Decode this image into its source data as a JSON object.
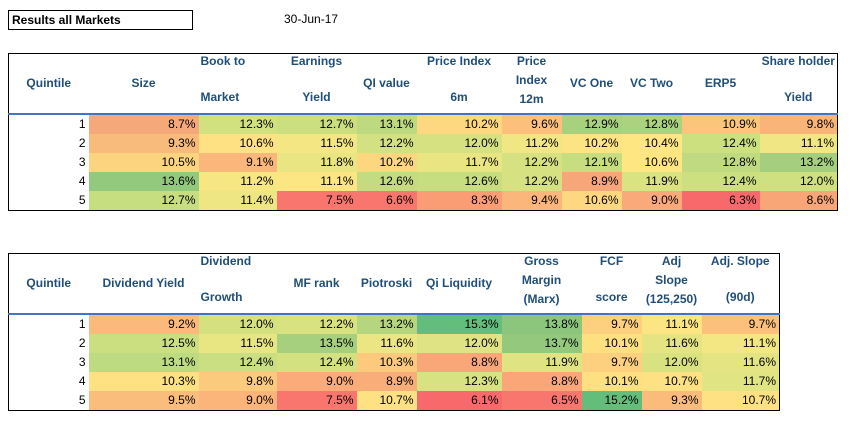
{
  "title": "Results all Markets",
  "date": "30-Jun-17",
  "table1": {
    "rows": [
      {
        "q": "1",
        "cells": [
          {
            "v": "8.7%",
            "c": "#f5a97a"
          },
          {
            "v": "12.3%",
            "c": "#d2e17f"
          },
          {
            "v": "12.7%",
            "c": "#cbdf81"
          },
          {
            "v": "13.1%",
            "c": "#bdda80"
          },
          {
            "v": "10.2%",
            "c": "#fed880"
          },
          {
            "v": "9.6%",
            "c": "#fcc07c"
          },
          {
            "v": "12.9%",
            "c": "#a8d17e"
          },
          {
            "v": "12.8%",
            "c": "#abd27e"
          },
          {
            "v": "10.9%",
            "c": "#fbc67c"
          },
          {
            "v": "9.8%",
            "c": "#f9b47a"
          }
        ]
      },
      {
        "q": "2",
        "cells": [
          {
            "v": "9.3%",
            "c": "#f8bb7b"
          },
          {
            "v": "10.6%",
            "c": "#fde182"
          },
          {
            "v": "11.5%",
            "c": "#f4e783"
          },
          {
            "v": "12.2%",
            "c": "#d3e182"
          },
          {
            "v": "12.0%",
            "c": "#d6e281"
          },
          {
            "v": "11.2%",
            "c": "#f1e684"
          },
          {
            "v": "10.2%",
            "c": "#fde483"
          },
          {
            "v": "10.4%",
            "c": "#fee683"
          },
          {
            "v": "12.4%",
            "c": "#cce080"
          },
          {
            "v": "11.1%",
            "c": "#f0e683"
          }
        ]
      },
      {
        "q": "3",
        "cells": [
          {
            "v": "10.5%",
            "c": "#fcd47f"
          },
          {
            "v": "9.1%",
            "c": "#fbb77b"
          },
          {
            "v": "11.8%",
            "c": "#e9e582"
          },
          {
            "v": "10.2%",
            "c": "#fdd680"
          },
          {
            "v": "11.7%",
            "c": "#eae583"
          },
          {
            "v": "12.2%",
            "c": "#d6e281"
          },
          {
            "v": "12.1%",
            "c": "#c8dd80"
          },
          {
            "v": "10.6%",
            "c": "#fee683"
          },
          {
            "v": "12.8%",
            "c": "#bfda80"
          },
          {
            "v": "13.2%",
            "c": "#a5cf7e"
          }
        ]
      },
      {
        "q": "4",
        "cells": [
          {
            "v": "13.6%",
            "c": "#93c97d"
          },
          {
            "v": "11.2%",
            "c": "#f7e783"
          },
          {
            "v": "11.1%",
            "c": "#fbe683"
          },
          {
            "v": "12.6%",
            "c": "#c3dc80"
          },
          {
            "v": "12.6%",
            "c": "#c6dd80"
          },
          {
            "v": "12.2%",
            "c": "#d6e281"
          },
          {
            "v": "8.9%",
            "c": "#f7a679"
          },
          {
            "v": "11.9%",
            "c": "#d9e381"
          },
          {
            "v": "12.4%",
            "c": "#cce080"
          },
          {
            "v": "12.0%",
            "c": "#cfe081"
          }
        ]
      },
      {
        "q": "5",
        "cells": [
          {
            "v": "12.7%",
            "c": "#c6dd80"
          },
          {
            "v": "11.4%",
            "c": "#eee683"
          },
          {
            "v": "7.5%",
            "c": "#f8766d"
          },
          {
            "v": "6.6%",
            "c": "#f8766d"
          },
          {
            "v": "8.3%",
            "c": "#fa9d75"
          },
          {
            "v": "9.4%",
            "c": "#fbb67b"
          },
          {
            "v": "10.6%",
            "c": "#fed880"
          },
          {
            "v": "9.0%",
            "c": "#f9a97a"
          },
          {
            "v": "6.3%",
            "c": "#f8696b"
          },
          {
            "v": "8.6%",
            "c": "#f8a678"
          }
        ]
      }
    ]
  },
  "table2": {
    "rows": [
      {
        "q": "1",
        "cells": [
          {
            "v": "9.2%",
            "c": "#fbba7b"
          },
          {
            "v": "12.0%",
            "c": "#d5e181"
          },
          {
            "v": "12.2%",
            "c": "#d9e281"
          },
          {
            "v": "13.2%",
            "c": "#b5d67f"
          },
          {
            "v": "15.3%",
            "c": "#63be7b"
          },
          {
            "v": "13.8%",
            "c": "#8cc67d"
          },
          {
            "v": "9.7%",
            "c": "#fdd07f"
          },
          {
            "v": "11.1%",
            "c": "#fee583"
          },
          {
            "v": "9.7%",
            "c": "#fbc17c"
          }
        ]
      },
      {
        "q": "2",
        "cells": [
          {
            "v": "12.5%",
            "c": "#cbdf81"
          },
          {
            "v": "11.5%",
            "c": "#e8e583"
          },
          {
            "v": "13.5%",
            "c": "#a7d07e"
          },
          {
            "v": "11.6%",
            "c": "#ebe583"
          },
          {
            "v": "12.0%",
            "c": "#e0e383"
          },
          {
            "v": "13.7%",
            "c": "#93c87d"
          },
          {
            "v": "10.1%",
            "c": "#fee081"
          },
          {
            "v": "11.6%",
            "c": "#e4e483"
          },
          {
            "v": "11.1%",
            "c": "#f2e783"
          }
        ]
      },
      {
        "q": "3",
        "cells": [
          {
            "v": "13.1%",
            "c": "#bddb80"
          },
          {
            "v": "12.4%",
            "c": "#cadf81"
          },
          {
            "v": "12.4%",
            "c": "#d4e181"
          },
          {
            "v": "10.3%",
            "c": "#fcc97d"
          },
          {
            "v": "8.8%",
            "c": "#f9a679"
          },
          {
            "v": "11.9%",
            "c": "#dfe382"
          },
          {
            "v": "9.7%",
            "c": "#fdd07f"
          },
          {
            "v": "12.0%",
            "c": "#d9e281"
          },
          {
            "v": "11.6%",
            "c": "#e4e483"
          }
        ]
      },
      {
        "q": "4",
        "cells": [
          {
            "v": "10.3%",
            "c": "#fde182"
          },
          {
            "v": "9.8%",
            "c": "#fcca7d"
          },
          {
            "v": "9.0%",
            "c": "#fbab7a"
          },
          {
            "v": "8.9%",
            "c": "#f9ad79"
          },
          {
            "v": "12.3%",
            "c": "#d7e282"
          },
          {
            "v": "8.8%",
            "c": "#fba678"
          },
          {
            "v": "10.1%",
            "c": "#fee081"
          },
          {
            "v": "10.7%",
            "c": "#fde182"
          },
          {
            "v": "11.7%",
            "c": "#e1e482"
          }
        ]
      },
      {
        "q": "5",
        "cells": [
          {
            "v": "9.5%",
            "c": "#fbbd7c"
          },
          {
            "v": "9.0%",
            "c": "#fbb57a"
          },
          {
            "v": "7.5%",
            "c": "#f8766d"
          },
          {
            "v": "10.7%",
            "c": "#fee182"
          },
          {
            "v": "6.1%",
            "c": "#f8696b"
          },
          {
            "v": "6.5%",
            "c": "#f8766d"
          },
          {
            "v": "15.2%",
            "c": "#63be7b"
          },
          {
            "v": "9.3%",
            "c": "#fbbc7b"
          },
          {
            "v": "10.7%",
            "c": "#fde182"
          }
        ]
      }
    ]
  },
  "header1": {
    "quintile": "Quintile",
    "size": "Size",
    "book_top": "Book to",
    "book_bottom": "Market",
    "earn_top": "Earnings",
    "earn_bottom": "Yield",
    "qi_value": "QI value",
    "pi6_top": "Price Index",
    "pi6_bottom": "6m",
    "pi12_top": "Price",
    "pi12_mid": "Index",
    "pi12_bottom": "12m",
    "vc_one": "VC One",
    "vc_two": "VC Two",
    "erp5": "ERP5",
    "sh_top": "Share holder",
    "sh_bottom": "Yield"
  },
  "header2": {
    "quintile": "Quintile",
    "div_yield": "Dividend Yield",
    "dg_top": "Dividend",
    "dg_bottom": "Growth",
    "mf_rank": "MF rank",
    "piotroski": "Piotroski",
    "qi_liquidity": "Qi Liquidity",
    "gm_top": "Gross",
    "gm_mid": "Margin",
    "gm_bottom": "(Marx)",
    "fcf_top": "FCF",
    "fcf_bottom": "score",
    "adj_top": "Adj",
    "adj_mid": "Slope",
    "adj_bottom": "(125,250)",
    "adj90_top": "Adj. Slope",
    "adj90_bottom": "(90d)"
  }
}
